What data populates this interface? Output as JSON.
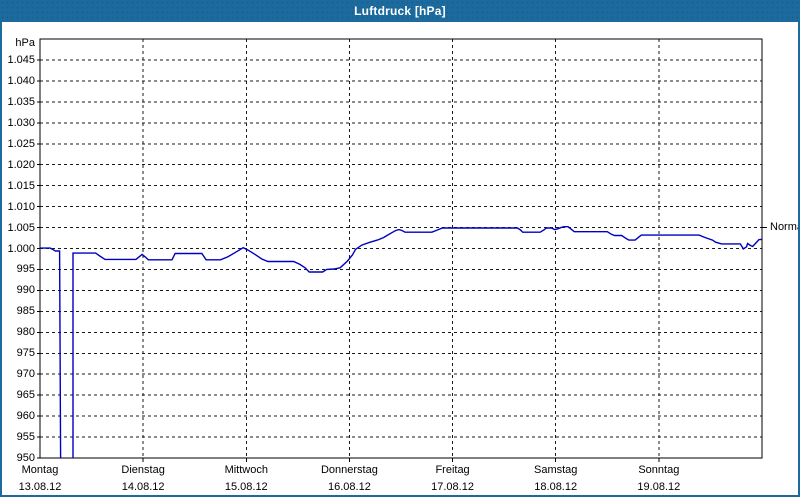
{
  "window": {
    "title": "Luftdruck [hPa]"
  },
  "colors": {
    "titlebar": "#1c6a9e",
    "window_border": "#1c6a9e",
    "plot_background": "#ffffff",
    "frame": "#000000",
    "grid": "#1a1a1a",
    "line": "#0000bf",
    "text": "#000000"
  },
  "chart_data": {
    "type": "line",
    "title": "Luftdruck [hPa]",
    "unit_label": "hPa",
    "grid": true,
    "y_axis": {
      "min": 950,
      "max": 1050,
      "tick_step": 5,
      "ticks": [
        {
          "value": 1045,
          "label": "1.045"
        },
        {
          "value": 1040,
          "label": "1.040"
        },
        {
          "value": 1035,
          "label": "1.035"
        },
        {
          "value": 1030,
          "label": "1.030"
        },
        {
          "value": 1025,
          "label": "1.025"
        },
        {
          "value": 1020,
          "label": "1.020"
        },
        {
          "value": 1015,
          "label": "1.015"
        },
        {
          "value": 1010,
          "label": "1.010"
        },
        {
          "value": 1005,
          "label": "1.005"
        },
        {
          "value": 1000,
          "label": "1.000"
        },
        {
          "value": 995,
          "label": "995"
        },
        {
          "value": 990,
          "label": "990"
        },
        {
          "value": 985,
          "label": "985"
        },
        {
          "value": 980,
          "label": "980"
        },
        {
          "value": 975,
          "label": "975"
        },
        {
          "value": 970,
          "label": "970"
        },
        {
          "value": 965,
          "label": "965"
        },
        {
          "value": 960,
          "label": "960"
        },
        {
          "value": 955,
          "label": "955"
        },
        {
          "value": 950,
          "label": "950"
        }
      ]
    },
    "x_axis": {
      "unit": "days",
      "range": [
        0,
        7
      ],
      "days": [
        {
          "name": "Montag",
          "date": "13.08.12"
        },
        {
          "name": "Dienstag",
          "date": "14.08.12"
        },
        {
          "name": "Mittwoch",
          "date": "15.08.12"
        },
        {
          "name": "Donnerstag",
          "date": "16.08.12"
        },
        {
          "name": "Freitag",
          "date": "17.08.12"
        },
        {
          "name": "Samstag",
          "date": "18.08.12"
        },
        {
          "name": "Sonntag",
          "date": "19.08.12"
        }
      ]
    },
    "normal_marker": {
      "label": "Normal",
      "value": 1005
    },
    "series": [
      {
        "name": "Luftdruck",
        "color": "#0000bf",
        "segments": [
          [
            [
              0,
              1000.1
            ],
            [
              0.1,
              1000.1
            ],
            [
              0.12,
              999.8
            ],
            [
              0.15,
              999.4
            ],
            [
              0.19,
              999.4
            ],
            [
              0.2,
              950
            ]
          ],
          [
            [
              0.32,
              950
            ],
            [
              0.32,
              998.9
            ],
            [
              0.54,
              998.9
            ],
            [
              0.58,
              998.2
            ],
            [
              0.63,
              997.4
            ],
            [
              0.93,
              997.4
            ],
            [
              0.96,
              998.0
            ],
            [
              0.99,
              998.6
            ],
            [
              1.02,
              998.0
            ],
            [
              1.05,
              997.3
            ],
            [
              1.28,
              997.3
            ],
            [
              1.31,
              998.8
            ],
            [
              1.57,
              998.8
            ],
            [
              1.61,
              997.3
            ],
            [
              1.75,
              997.3
            ],
            [
              1.82,
              998.0
            ],
            [
              1.89,
              999.0
            ],
            [
              1.97,
              1000.2
            ],
            [
              2.02,
              999.6
            ],
            [
              2.09,
              998.5
            ],
            [
              2.15,
              997.5
            ],
            [
              2.21,
              996.9
            ],
            [
              2.46,
              996.9
            ],
            [
              2.52,
              996.2
            ],
            [
              2.57,
              995.4
            ],
            [
              2.61,
              994.4
            ],
            [
              2.74,
              994.4
            ],
            [
              2.78,
              995.0
            ],
            [
              2.85,
              995.1
            ],
            [
              2.91,
              995.4
            ],
            [
              2.98,
              997.0
            ],
            [
              3.03,
              998.5
            ],
            [
              3.06,
              999.8
            ],
            [
              3.12,
              1000.8
            ],
            [
              3.2,
              1001.5
            ],
            [
              3.27,
              1002.0
            ],
            [
              3.33,
              1002.6
            ],
            [
              3.37,
              1003.2
            ],
            [
              3.42,
              1003.9
            ],
            [
              3.45,
              1004.3
            ],
            [
              3.48,
              1004.5
            ],
            [
              3.51,
              1004.3
            ],
            [
              3.54,
              1003.9
            ],
            [
              3.8,
              1003.9
            ],
            [
              3.85,
              1004.4
            ],
            [
              3.9,
              1004.9
            ],
            [
              4.63,
              1004.9
            ],
            [
              4.66,
              1004.4
            ],
            [
              4.68,
              1003.9
            ],
            [
              4.85,
              1003.9
            ],
            [
              4.89,
              1004.5
            ],
            [
              4.91,
              1004.9
            ],
            [
              4.96,
              1004.9
            ],
            [
              4.99,
              1004.5
            ],
            [
              5.02,
              1004.7
            ],
            [
              5.05,
              1005.0
            ],
            [
              5.08,
              1005.2
            ],
            [
              5.12,
              1005.2
            ],
            [
              5.15,
              1004.6
            ],
            [
              5.18,
              1004.0
            ],
            [
              5.5,
              1004.0
            ],
            [
              5.54,
              1003.4
            ],
            [
              5.57,
              1003.1
            ],
            [
              5.64,
              1003.1
            ],
            [
              5.68,
              1002.4
            ],
            [
              5.71,
              1002.0
            ],
            [
              5.77,
              1002.0
            ],
            [
              5.8,
              1002.6
            ],
            [
              5.83,
              1003.2
            ],
            [
              6.39,
              1003.2
            ],
            [
              6.45,
              1002.6
            ],
            [
              6.52,
              1002.0
            ],
            [
              6.55,
              1001.5
            ],
            [
              6.61,
              1001.1
            ],
            [
              6.79,
              1001.1
            ],
            [
              6.82,
              999.9
            ],
            [
              6.85,
              1000.4
            ],
            [
              6.86,
              1001.2
            ],
            [
              6.89,
              1000.7
            ],
            [
              6.91,
              1000.5
            ],
            [
              6.94,
              1001.3
            ],
            [
              6.97,
              1002.1
            ],
            [
              7.0,
              1002.2
            ]
          ]
        ]
      }
    ]
  }
}
